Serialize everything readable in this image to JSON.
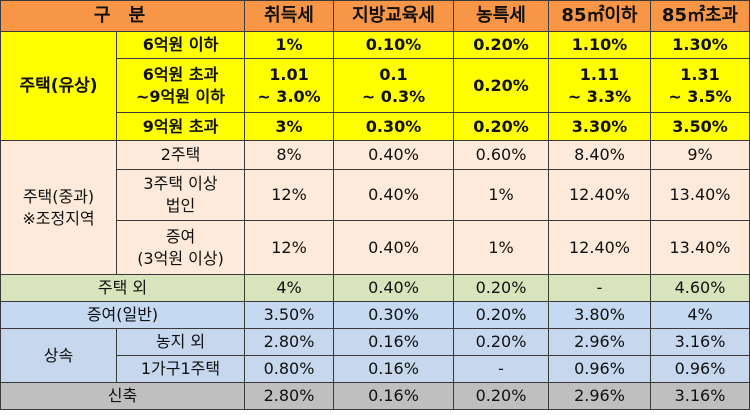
{
  "header": {
    "category": "구 분",
    "cols": [
      "취득세",
      "지방교육세",
      "농특세",
      "85㎡이하",
      "85㎡초과"
    ]
  },
  "housing_paid": {
    "label": "주택(유상)",
    "rows": [
      {
        "sub": "6억원 이하",
        "values": [
          "1%",
          "0.10%",
          "0.20%",
          "1.10%",
          "1.30%"
        ]
      },
      {
        "sub_l1": "6억원 초과",
        "sub_l2": "~9억원 이하",
        "v0_l1": "1.01",
        "v0_l2": "~ 3.0%",
        "v1_l1": "0.1",
        "v1_l2": "~ 0.3%",
        "v2": "0.20%",
        "v3_l1": "1.11",
        "v3_l2": "~ 3.3%",
        "v4_l1": "1.31",
        "v4_l2": "~ 3.5%"
      },
      {
        "sub": "9억원 초과",
        "values": [
          "3%",
          "0.30%",
          "0.20%",
          "3.30%",
          "3.50%"
        ]
      }
    ]
  },
  "housing_heavy": {
    "label_l1": "주택(중과)",
    "label_l2": "※조정지역",
    "rows": [
      {
        "sub": "2주택",
        "values": [
          "8%",
          "0.40%",
          "0.60%",
          "8.40%",
          "9%"
        ]
      },
      {
        "sub_l1": "3주택 이상",
        "sub_l2": "법인",
        "values": [
          "12%",
          "0.40%",
          "1%",
          "12.40%",
          "13.40%"
        ]
      },
      {
        "sub_l1": "증여",
        "sub_l2": "(3억원 이상)",
        "values": [
          "12%",
          "0.40%",
          "1%",
          "12.40%",
          "13.40%"
        ]
      }
    ]
  },
  "non_housing": {
    "label": "주택 외",
    "values": [
      "4%",
      "0.40%",
      "0.20%",
      "-",
      "4.60%"
    ]
  },
  "gift_general": {
    "label": "증여(일반)",
    "values": [
      "3.50%",
      "0.30%",
      "0.20%",
      "3.80%",
      "4%"
    ]
  },
  "inheritance": {
    "label": "상속",
    "rows": [
      {
        "sub": "농지 외",
        "values": [
          "2.80%",
          "0.16%",
          "0.20%",
          "2.96%",
          "3.16%"
        ]
      },
      {
        "sub": "1가구1주택",
        "values": [
          "0.80%",
          "0.16%",
          "-",
          "0.96%",
          "0.96%"
        ]
      }
    ]
  },
  "new_build": {
    "label": "신축",
    "values": [
      "2.80%",
      "0.16%",
      "0.20%",
      "2.96%",
      "3.16%"
    ]
  }
}
